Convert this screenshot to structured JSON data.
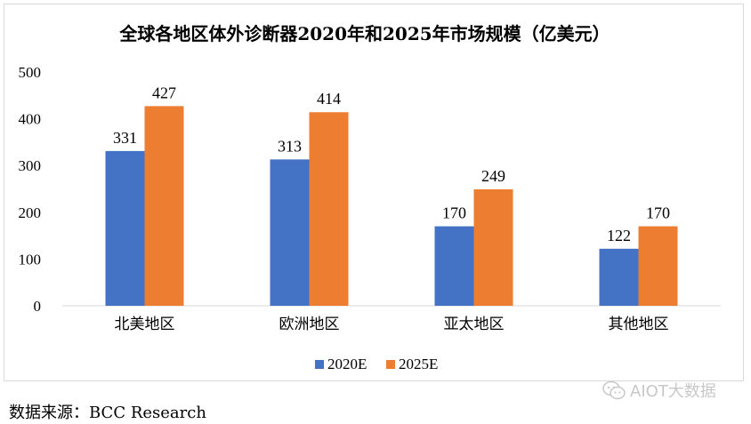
{
  "chart_data": {
    "type": "bar",
    "title": "全球各地区体外诊断器2020年和2025年市场规模（亿美元）",
    "categories": [
      "北美地区",
      "欧洲地区",
      "亚太地区",
      "其他地区"
    ],
    "series": [
      {
        "name": "2020E",
        "values": [
          331,
          313,
          170,
          122
        ],
        "color": "#4472c4"
      },
      {
        "name": "2025E",
        "values": [
          427,
          414,
          249,
          170
        ],
        "color": "#ed7d31"
      }
    ],
    "ylim": [
      0,
      500
    ],
    "yticks": [
      0,
      100,
      200,
      300,
      400,
      500
    ],
    "grid": false,
    "legend_position": "bottom"
  },
  "source": "数据来源：BCC Research",
  "watermark": "AIOT大数据",
  "watermark_icon": "wechat-icon"
}
